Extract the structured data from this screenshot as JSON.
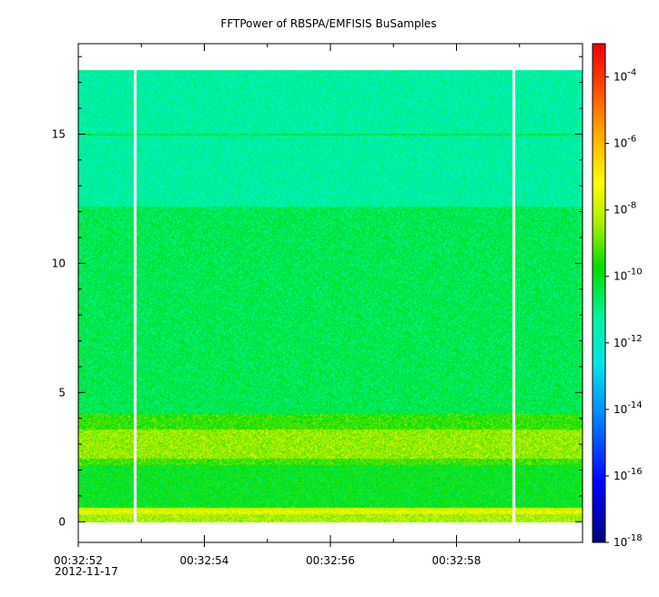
{
  "chart_data": {
    "type": "heatmap",
    "title": "FFTPower of RBSPA/EMFISIS  BuSamples",
    "xlabel": "",
    "ylabel": "",
    "x_axis": {
      "type": "time",
      "range": [
        "00:32:52",
        "00:33:00"
      ],
      "major_ticks": [
        "00:32:52",
        "00:32:54",
        "00:32:56",
        "00:32:58"
      ],
      "minor_tick_interval_s": 1,
      "date_label": "2012-11-17"
    },
    "y_axis": {
      "range": [
        -0.8,
        18.5
      ],
      "ticks": [
        0,
        5,
        10,
        15
      ],
      "tick_labels": [
        "0",
        "5",
        "10",
        "15"
      ]
    },
    "colorbar": {
      "scale": "log",
      "range": [
        1e-18,
        0.001
      ],
      "colormap": "rainbow",
      "ticks": [
        {
          "mantissa": "10",
          "exponent": "-4"
        },
        {
          "mantissa": "10",
          "exponent": "-6"
        },
        {
          "mantissa": "10",
          "exponent": "-8"
        },
        {
          "mantissa": "10",
          "exponent": "-10"
        },
        {
          "mantissa": "10",
          "exponent": "-12"
        },
        {
          "mantissa": "10",
          "exponent": "-14"
        },
        {
          "mantissa": "10",
          "exponent": "-16"
        },
        {
          "mantissa": "10",
          "exponent": "-18"
        }
      ]
    },
    "data_extent": {
      "y_min": 0,
      "y_max": 17.5
    },
    "bands": [
      {
        "y_from": 0.0,
        "y_to": 0.3,
        "log10_power": -8.3
      },
      {
        "y_from": 0.3,
        "y_to": 0.55,
        "log10_power": -7.6
      },
      {
        "y_from": 0.55,
        "y_to": 2.2,
        "log10_power": -10.0
      },
      {
        "y_from": 2.2,
        "y_to": 2.45,
        "log10_power": -9.3
      },
      {
        "y_from": 2.45,
        "y_to": 3.6,
        "log10_power": -8.5
      },
      {
        "y_from": 3.6,
        "y_to": 4.2,
        "log10_power": -9.4
      },
      {
        "y_from": 4.2,
        "y_to": 12.2,
        "log10_power": -10.5
      },
      {
        "y_from": 12.2,
        "y_to": 17.5,
        "log10_power": -11.4
      }
    ],
    "line_features": [
      {
        "y": 15.0,
        "log10_power": -10.3
      }
    ],
    "data_gaps_x": [
      "00:32:52.9",
      "00:32:58.9"
    ]
  }
}
